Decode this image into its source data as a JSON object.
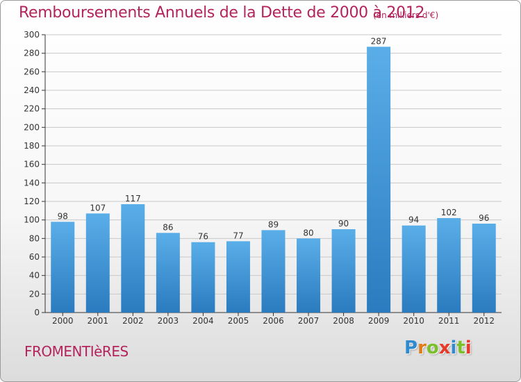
{
  "header": {
    "title": "Remboursements Annuels de la Dette de 2000 à 2012",
    "unit": "(en milliers d'€)"
  },
  "footer": {
    "commune": "FROMENTIèRES",
    "logo_letters": [
      "P",
      "r",
      "o",
      "x",
      "i",
      "t",
      "i"
    ],
    "logo_colors": [
      "#2f8ad0",
      "#e07b18",
      "#7bbf2a",
      "#e83a2a",
      "#2f8ad0",
      "#7bbf2a",
      "#e83a2a"
    ]
  },
  "colors": {
    "bar_light": "#5aaee8",
    "bar_dark": "#2a7bbf",
    "grid": "#c8c8c8",
    "text": "#333333",
    "title": "#b3245c"
  },
  "chart_data": {
    "type": "bar",
    "categories": [
      "2000",
      "2001",
      "2002",
      "2003",
      "2004",
      "2005",
      "2006",
      "2007",
      "2008",
      "2009",
      "2010",
      "2011",
      "2012"
    ],
    "values": [
      98,
      107,
      117,
      86,
      76,
      77,
      89,
      80,
      90,
      287,
      94,
      102,
      96
    ],
    "title": "Remboursements Annuels de la Dette de 2000 à 2012",
    "ylim": [
      0,
      300
    ],
    "yticks": [
      0,
      20,
      40,
      60,
      80,
      100,
      120,
      140,
      160,
      180,
      200,
      220,
      240,
      260,
      280,
      300
    ],
    "grid": true,
    "data_labels": true
  }
}
